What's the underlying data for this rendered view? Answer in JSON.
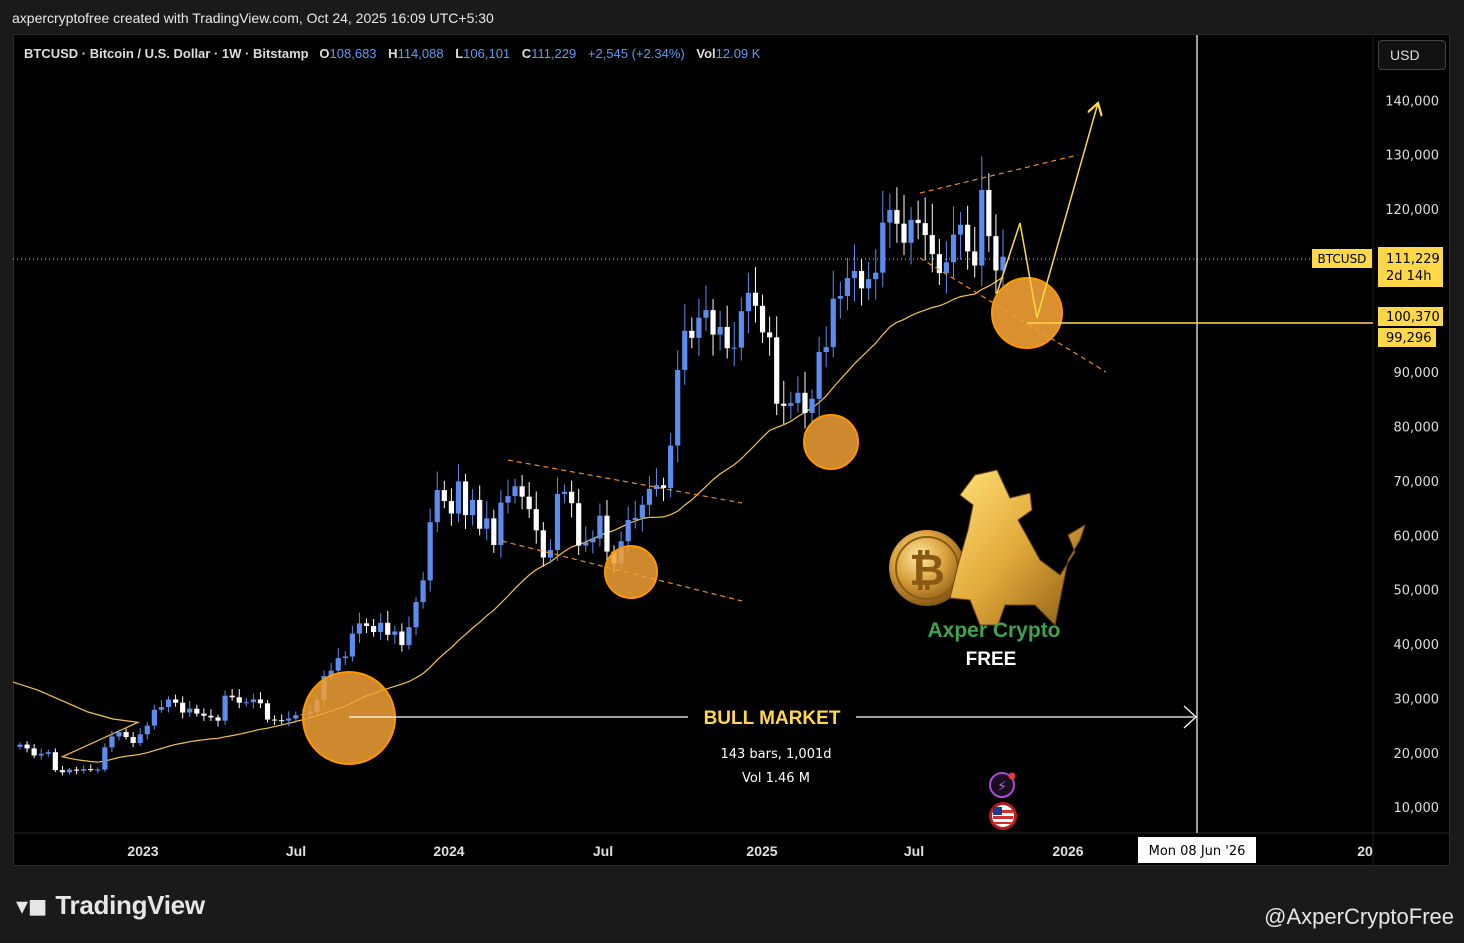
{
  "header": {
    "credit": "axpercryptofree created with TradingView.com, Oct 24, 2025 16:09 UTC+5:30"
  },
  "legend": {
    "symbol": "BTCUSD · Bitcoin / U.S. Dollar · 1W · Bitstamp",
    "o_label": "O",
    "o": "108,683",
    "h_label": "H",
    "h": "114,088",
    "l_label": "L",
    "l": "106,101",
    "c_label": "C",
    "c": "111,229",
    "change": "+2,545 (+2.34%)",
    "vol_label": "Vol",
    "vol": "12.09 K"
  },
  "currency_button": "USD",
  "footer": {
    "logo": "TradingView",
    "handle": "@AxperCryptoFree"
  },
  "chart_data": {
    "type": "candlestick",
    "x_ticks": [
      "2023",
      "Jul",
      "2024",
      "Jul",
      "2025",
      "Jul",
      "2026",
      "20"
    ],
    "y_ticks": [
      "140,000",
      "130,000",
      "120,000",
      "90,000",
      "80,000",
      "70,000",
      "60,000",
      "50,000",
      "40,000",
      "30,000",
      "20,000",
      "10,000"
    ],
    "ylim": [
      5000,
      148000
    ],
    "price_label": {
      "symbol": "BTCUSD",
      "value": "111,229",
      "countdown": "2d 14h"
    },
    "level_label": {
      "value": "100,370",
      "ma_value": "99,296"
    },
    "crosshair_date": "Mon 08 Jun '26",
    "colors": {
      "up": "#5b8def",
      "down": "#ffffff",
      "ma": "#f5c542",
      "annotation": "#ffd84a",
      "channel": "#f08a24",
      "circle_stroke": "#ff9800"
    },
    "annotations": {
      "range_label": "BULL MARKET",
      "range_bars": "143 bars, 1,001d",
      "range_vol": "Vol 1.46 M"
    },
    "watermark": {
      "line1": "Axper Crypto",
      "line2": "FREE"
    },
    "weekly_closes": [
      21500,
      20800,
      19500,
      19800,
      20100,
      16800,
      16400,
      16900,
      16700,
      17000,
      16800,
      16900,
      21000,
      23000,
      23800,
      22900,
      21800,
      23400,
      25000,
      27900,
      28400,
      29800,
      29200,
      27400,
      28100,
      27200,
      26800,
      26500,
      25900,
      30500,
      30200,
      29200,
      29300,
      29800,
      29100,
      26100,
      26000,
      25900,
      26300,
      26900,
      27100,
      27600,
      29700,
      34100,
      35100,
      37400,
      37700,
      41900,
      43800,
      43300,
      42200,
      43900,
      41700,
      42300,
      39800,
      43100,
      47700,
      51700,
      62400,
      68300,
      66300,
      64000,
      69900,
      63700,
      66500,
      61200,
      63100,
      58200,
      66000,
      67200,
      69000,
      67100,
      64800,
      60900,
      55900,
      57300,
      67600,
      68000,
      65900,
      58100,
      58700,
      59400,
      63600,
      57000,
      54800,
      58900,
      62800,
      63200,
      65600,
      68500,
      69200,
      68700,
      76500,
      90400,
      97600,
      96300,
      100000,
      101400,
      96900,
      98300,
      94400,
      94500,
      101200,
      104600,
      102200,
      97300,
      96400,
      84200,
      83800,
      84300,
      86200,
      82500,
      85100,
      93700,
      94600,
      103500,
      104000,
      107300,
      108600,
      105400,
      107100,
      108300,
      117500,
      119800,
      117300,
      113800,
      118000,
      117400,
      115200,
      111700,
      108200,
      110200,
      115300,
      117100,
      112200,
      109600,
      123500,
      115000,
      108700,
      111229
    ]
  }
}
